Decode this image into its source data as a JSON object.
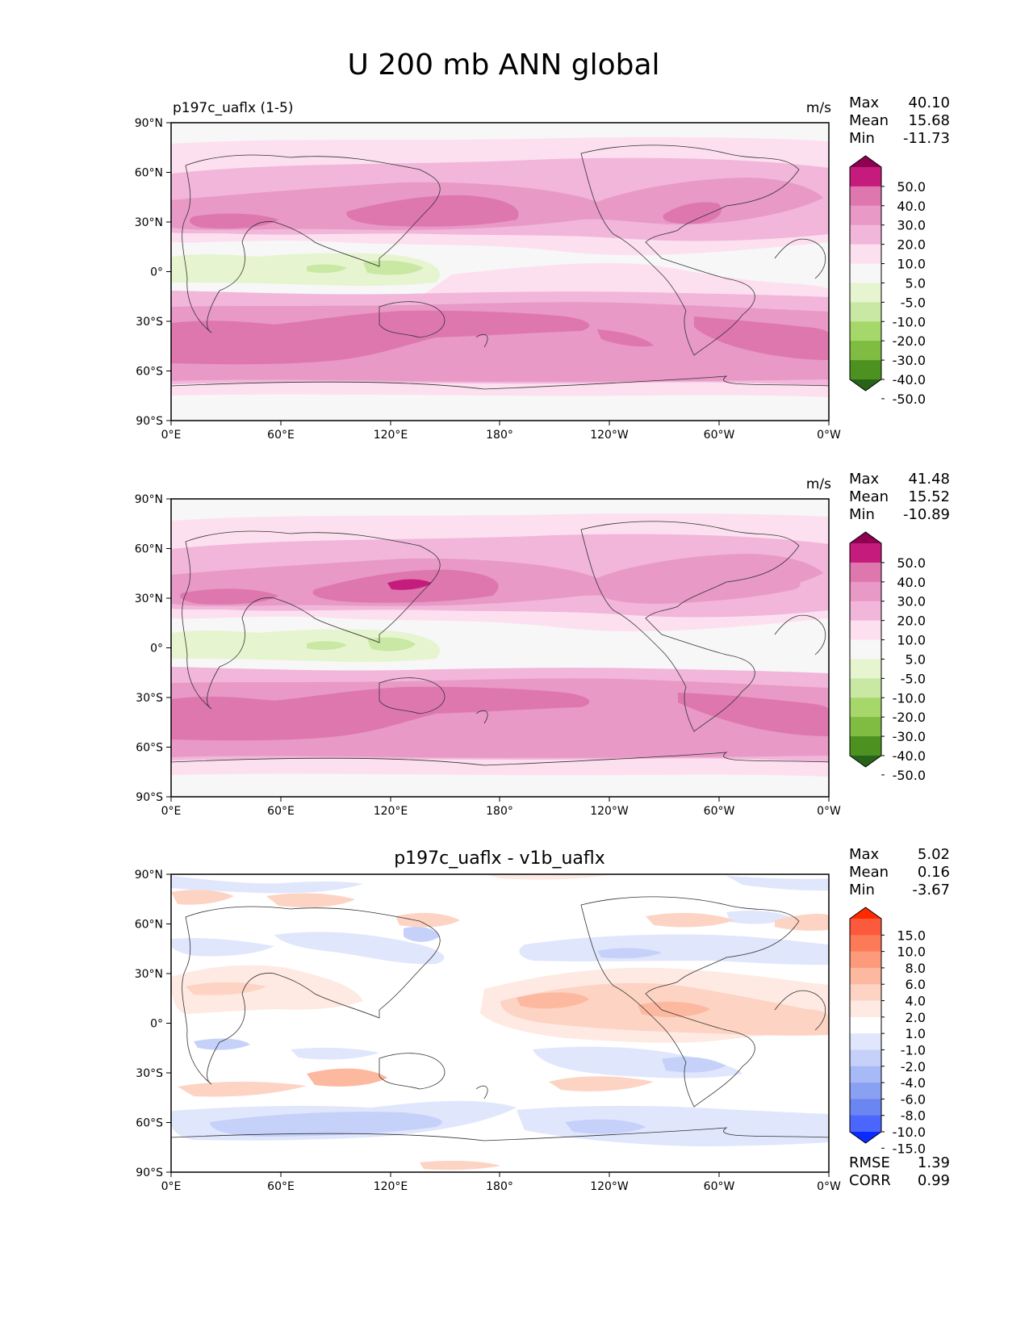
{
  "figure": {
    "title": "U 200 mb ANN global"
  },
  "axes": {
    "lat_ticks": [
      "90°N",
      "60°N",
      "30°N",
      "0°",
      "30°S",
      "60°S",
      "90°S"
    ],
    "lon_ticks": [
      "0°E",
      "60°E",
      "120°E",
      "180°",
      "120°W",
      "60°W",
      "0°W"
    ]
  },
  "panels": [
    {
      "title_left": "p197c_uaflx (1-5)",
      "title_center": "",
      "units": "m/s",
      "stats": [
        {
          "label": "Max",
          "value": "40.10"
        },
        {
          "label": "Mean",
          "value": "15.68"
        },
        {
          "label": "Min",
          "value": "-11.73"
        }
      ],
      "colorbar": {
        "labels": [
          "50.0",
          "40.0",
          "30.0",
          "20.0",
          "10.0",
          "5.0",
          "-5.0",
          "-10.0",
          "-20.0",
          "-30.0",
          "-40.0",
          "-50.0"
        ],
        "colors": [
          "#8e0152",
          "#c51b7d",
          "#de77ae",
          "#e899c6",
          "#f1b6da",
          "#fde0ef",
          "#f7f7f7",
          "#e6f5d0",
          "#c8e8a4",
          "#a6d76a",
          "#7fbc41",
          "#4d9221",
          "#276419"
        ]
      },
      "extra_stats": []
    },
    {
      "title_left": "",
      "title_center": "",
      "units": "m/s",
      "stats": [
        {
          "label": "Max",
          "value": "41.48"
        },
        {
          "label": "Mean",
          "value": "15.52"
        },
        {
          "label": "Min",
          "value": "-10.89"
        }
      ],
      "colorbar": {
        "labels": [
          "50.0",
          "40.0",
          "30.0",
          "20.0",
          "10.0",
          "5.0",
          "-5.0",
          "-10.0",
          "-20.0",
          "-30.0",
          "-40.0",
          "-50.0"
        ],
        "colors": [
          "#8e0152",
          "#c51b7d",
          "#de77ae",
          "#e899c6",
          "#f1b6da",
          "#fde0ef",
          "#f7f7f7",
          "#e6f5d0",
          "#c8e8a4",
          "#a6d76a",
          "#7fbc41",
          "#4d9221",
          "#276419"
        ]
      },
      "extra_stats": []
    },
    {
      "title_left": "",
      "title_center": "p197c_uaflx - v1b_uaflx",
      "units": "",
      "stats": [
        {
          "label": "Max",
          "value": "5.02"
        },
        {
          "label": "Mean",
          "value": "0.16"
        },
        {
          "label": "Min",
          "value": "-3.67"
        }
      ],
      "colorbar": {
        "labels": [
          "15.0",
          "10.0",
          "8.0",
          "6.0",
          "4.0",
          "2.0",
          "1.0",
          "-1.0",
          "-2.0",
          "-4.0",
          "-6.0",
          "-8.0",
          "-10.0",
          "-15.0"
        ],
        "colors": [
          "#ff2a00",
          "#fb5a3c",
          "#fc7a58",
          "#fd9a7c",
          "#fdb8a0",
          "#fdd3c3",
          "#feeae2",
          "#ffffff",
          "#e0e6fc",
          "#c6d1fa",
          "#a7b9f7",
          "#8aa1f3",
          "#6b86f0",
          "#4a66ff",
          "#0a2aff"
        ]
      },
      "extra_stats": [
        {
          "label": "RMSE",
          "value": "1.39"
        },
        {
          "label": "CORR",
          "value": "0.99"
        }
      ]
    }
  ]
}
